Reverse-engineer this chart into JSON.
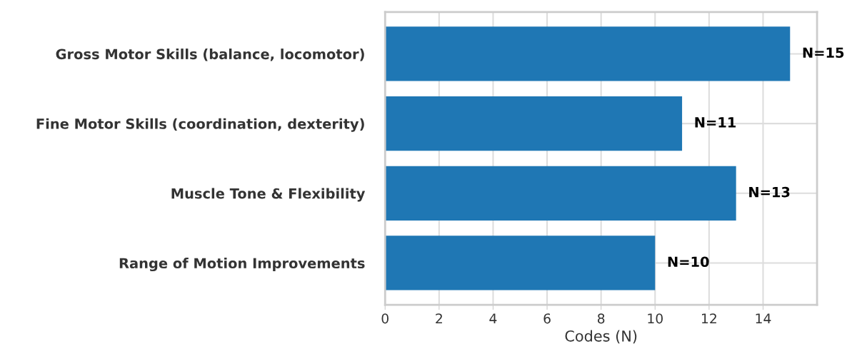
{
  "chart_data": {
    "type": "bar",
    "orientation": "horizontal",
    "xlabel": "Codes (N)",
    "categories": [
      "Gross Motor Skills (balance, locomotor)",
      "Fine Motor Skills (coordination, dexterity)",
      "Muscle Tone & Flexibility",
      "Range of Motion Improvements"
    ],
    "values": [
      15,
      11,
      13,
      10
    ],
    "color": "#1f77b4",
    "value_labels": [
      "N=15",
      "N=11",
      "N=13",
      "N=10"
    ],
    "xlim": [
      0,
      16
    ],
    "xticks": [
      0,
      2,
      4,
      6,
      8,
      10,
      12,
      14
    ],
    "grid": true
  }
}
